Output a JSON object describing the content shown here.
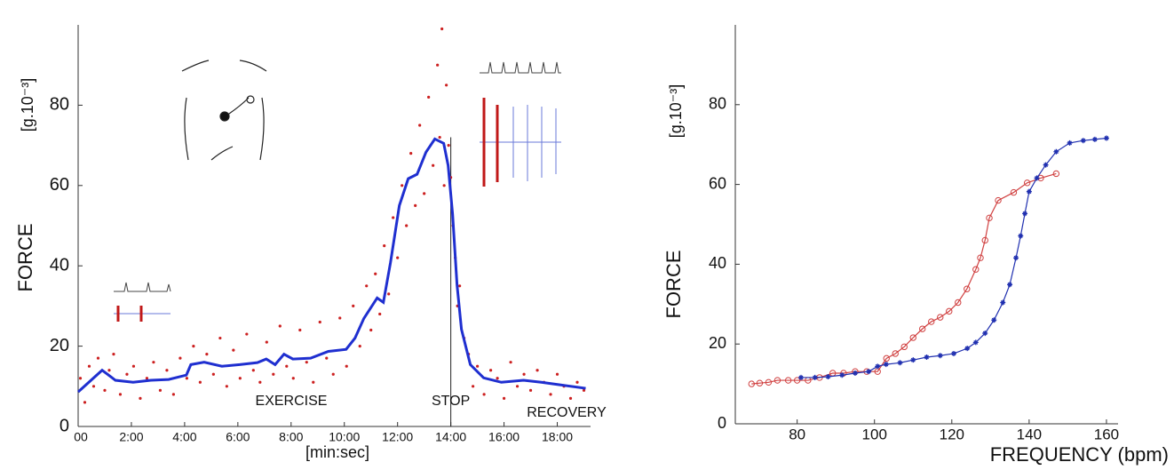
{
  "chart_data": [
    {
      "type": "line",
      "x_label": "[min:sec]",
      "y_label": "FORCE",
      "y_unit": "[g.10⁻³]",
      "xlim": [
        0,
        1155
      ],
      "ylim": [
        0,
        100
      ],
      "xticks": [
        {
          "value": 0,
          "label": "00"
        },
        {
          "value": 120,
          "label": "2:00"
        },
        {
          "value": 240,
          "label": "4:00"
        },
        {
          "value": 360,
          "label": "6:00"
        },
        {
          "value": 480,
          "label": "8:00"
        },
        {
          "value": 600,
          "label": "10:00"
        },
        {
          "value": 720,
          "label": "12:00"
        },
        {
          "value": 840,
          "label": "14:00"
        },
        {
          "value": 960,
          "label": "16:00"
        },
        {
          "value": 1080,
          "label": "18:00"
        }
      ],
      "yticks": [
        0,
        20,
        40,
        60,
        80
      ],
      "vline": 840,
      "annotations": [
        "EXERCISE",
        "STOP",
        "RECOVERY"
      ],
      "series": [
        {
          "style": "dots",
          "color": "#cc2020",
          "x": [
            5,
            15,
            25,
            35,
            45,
            60,
            70,
            80,
            95,
            110,
            125,
            140,
            155,
            170,
            185,
            200,
            215,
            230,
            245,
            260,
            275,
            290,
            305,
            320,
            335,
            350,
            365,
            380,
            395,
            410,
            425,
            440,
            455,
            470,
            485,
            500,
            515,
            530,
            545,
            560,
            575,
            590,
            605,
            620,
            635,
            650,
            660,
            670,
            680,
            690,
            700,
            710,
            720,
            730,
            740,
            750,
            760,
            770,
            780,
            790,
            800,
            810,
            815,
            820,
            825,
            830,
            835,
            840,
            845,
            850,
            855,
            860,
            870,
            880,
            890,
            900,
            915,
            930,
            945,
            960,
            975,
            990,
            1005,
            1020,
            1035,
            1050,
            1065,
            1080,
            1095,
            1110,
            1125,
            1140
          ],
          "values": [
            12,
            6,
            15,
            10,
            17,
            9,
            14,
            18,
            8,
            13,
            15,
            7,
            12,
            16,
            9,
            14,
            8,
            17,
            12,
            20,
            11,
            18,
            13,
            22,
            10,
            19,
            12,
            23,
            14,
            11,
            21,
            13,
            25,
            15,
            12,
            24,
            16,
            11,
            26,
            17,
            13,
            27,
            15,
            30,
            20,
            35,
            24,
            38,
            28,
            45,
            33,
            52,
            42,
            60,
            50,
            68,
            55,
            75,
            58,
            82,
            65,
            90,
            72,
            99,
            60,
            85,
            70,
            62,
            50,
            42,
            30,
            35,
            22,
            18,
            10,
            15,
            8,
            14,
            12,
            7,
            16,
            10,
            13,
            9,
            14,
            11,
            8,
            13,
            10,
            7,
            11,
            9
          ]
        },
        {
          "style": "line",
          "color": "#1f2fd0",
          "x": [
            0,
            54,
            84,
            124,
            164,
            204,
            244,
            254,
            284,
            324,
            364,
            404,
            424,
            444,
            464,
            484,
            524,
            564,
            604,
            624,
            644,
            674,
            688,
            704,
            724,
            744,
            764,
            784,
            804,
            824,
            834,
            844,
            854,
            864,
            884,
            914,
            954,
            1004,
            1044,
            1084,
            1144
          ],
          "values": [
            8.6,
            14,
            11.5,
            11,
            11.5,
            11.7,
            12.8,
            15.4,
            16,
            15,
            15.4,
            15.9,
            16.8,
            15.4,
            18,
            16.8,
            17,
            18.7,
            19.2,
            22,
            26.9,
            32,
            30.9,
            40.8,
            55,
            61.7,
            62.8,
            68.3,
            71.6,
            70.5,
            65,
            52.9,
            35.3,
            24.2,
            15.4,
            12.1,
            11,
            11.5,
            11,
            10.4,
            9.5
          ]
        }
      ]
    },
    {
      "type": "line",
      "x_label": "FREQUENCY (bpm)",
      "y_label": "FORCE",
      "y_unit": "[g.10⁻³]",
      "xlim": [
        64,
        163
      ],
      "ylim": [
        0,
        100
      ],
      "xticks": [
        80,
        100,
        120,
        140,
        160
      ],
      "yticks": [
        0,
        20,
        40,
        60,
        80
      ],
      "series": [
        {
          "style": "circles",
          "color": "#d04040",
          "x": [
            68.2,
            70.3,
            72.6,
            74.9,
            77.7,
            80,
            82.8,
            85.8,
            89.2,
            92,
            95,
            98,
            100.8,
            103.1,
            105.4,
            107.7,
            110,
            112.4,
            114.7,
            117,
            119.3,
            121.6,
            123.9,
            126.2,
            127.4,
            128.6,
            129.7,
            132,
            136,
            139.5,
            143,
            147
          ],
          "values": [
            10,
            10.2,
            10.4,
            10.9,
            10.9,
            10.9,
            10.9,
            11.6,
            12.7,
            12.7,
            13.1,
            13.1,
            13.1,
            16.4,
            17.6,
            19.3,
            21.6,
            23.8,
            25.6,
            26.7,
            28.2,
            30.4,
            33.8,
            38.7,
            41.6,
            46,
            51.6,
            56,
            58,
            60.4,
            61.6,
            62.7
          ]
        },
        {
          "style": "stars",
          "color": "#2030b0",
          "x": [
            81,
            84.6,
            88,
            91.6,
            95,
            98.5,
            100.8,
            103,
            106.6,
            110,
            113.5,
            117,
            120.5,
            124,
            126.2,
            128.6,
            130.9,
            133.2,
            135,
            136.6,
            137.8,
            138.9,
            140,
            142,
            144.3,
            147,
            150.5,
            154,
            157,
            160
          ],
          "values": [
            11.6,
            11.6,
            11.8,
            12.2,
            12.7,
            13.1,
            14.4,
            14.9,
            15.3,
            16,
            16.7,
            17.1,
            17.6,
            18.9,
            20.4,
            22.7,
            26,
            30.4,
            34.9,
            41.6,
            47.1,
            52.7,
            58.2,
            61.6,
            64.9,
            68.2,
            70.4,
            71,
            71.3,
            71.6
          ]
        }
      ]
    }
  ]
}
